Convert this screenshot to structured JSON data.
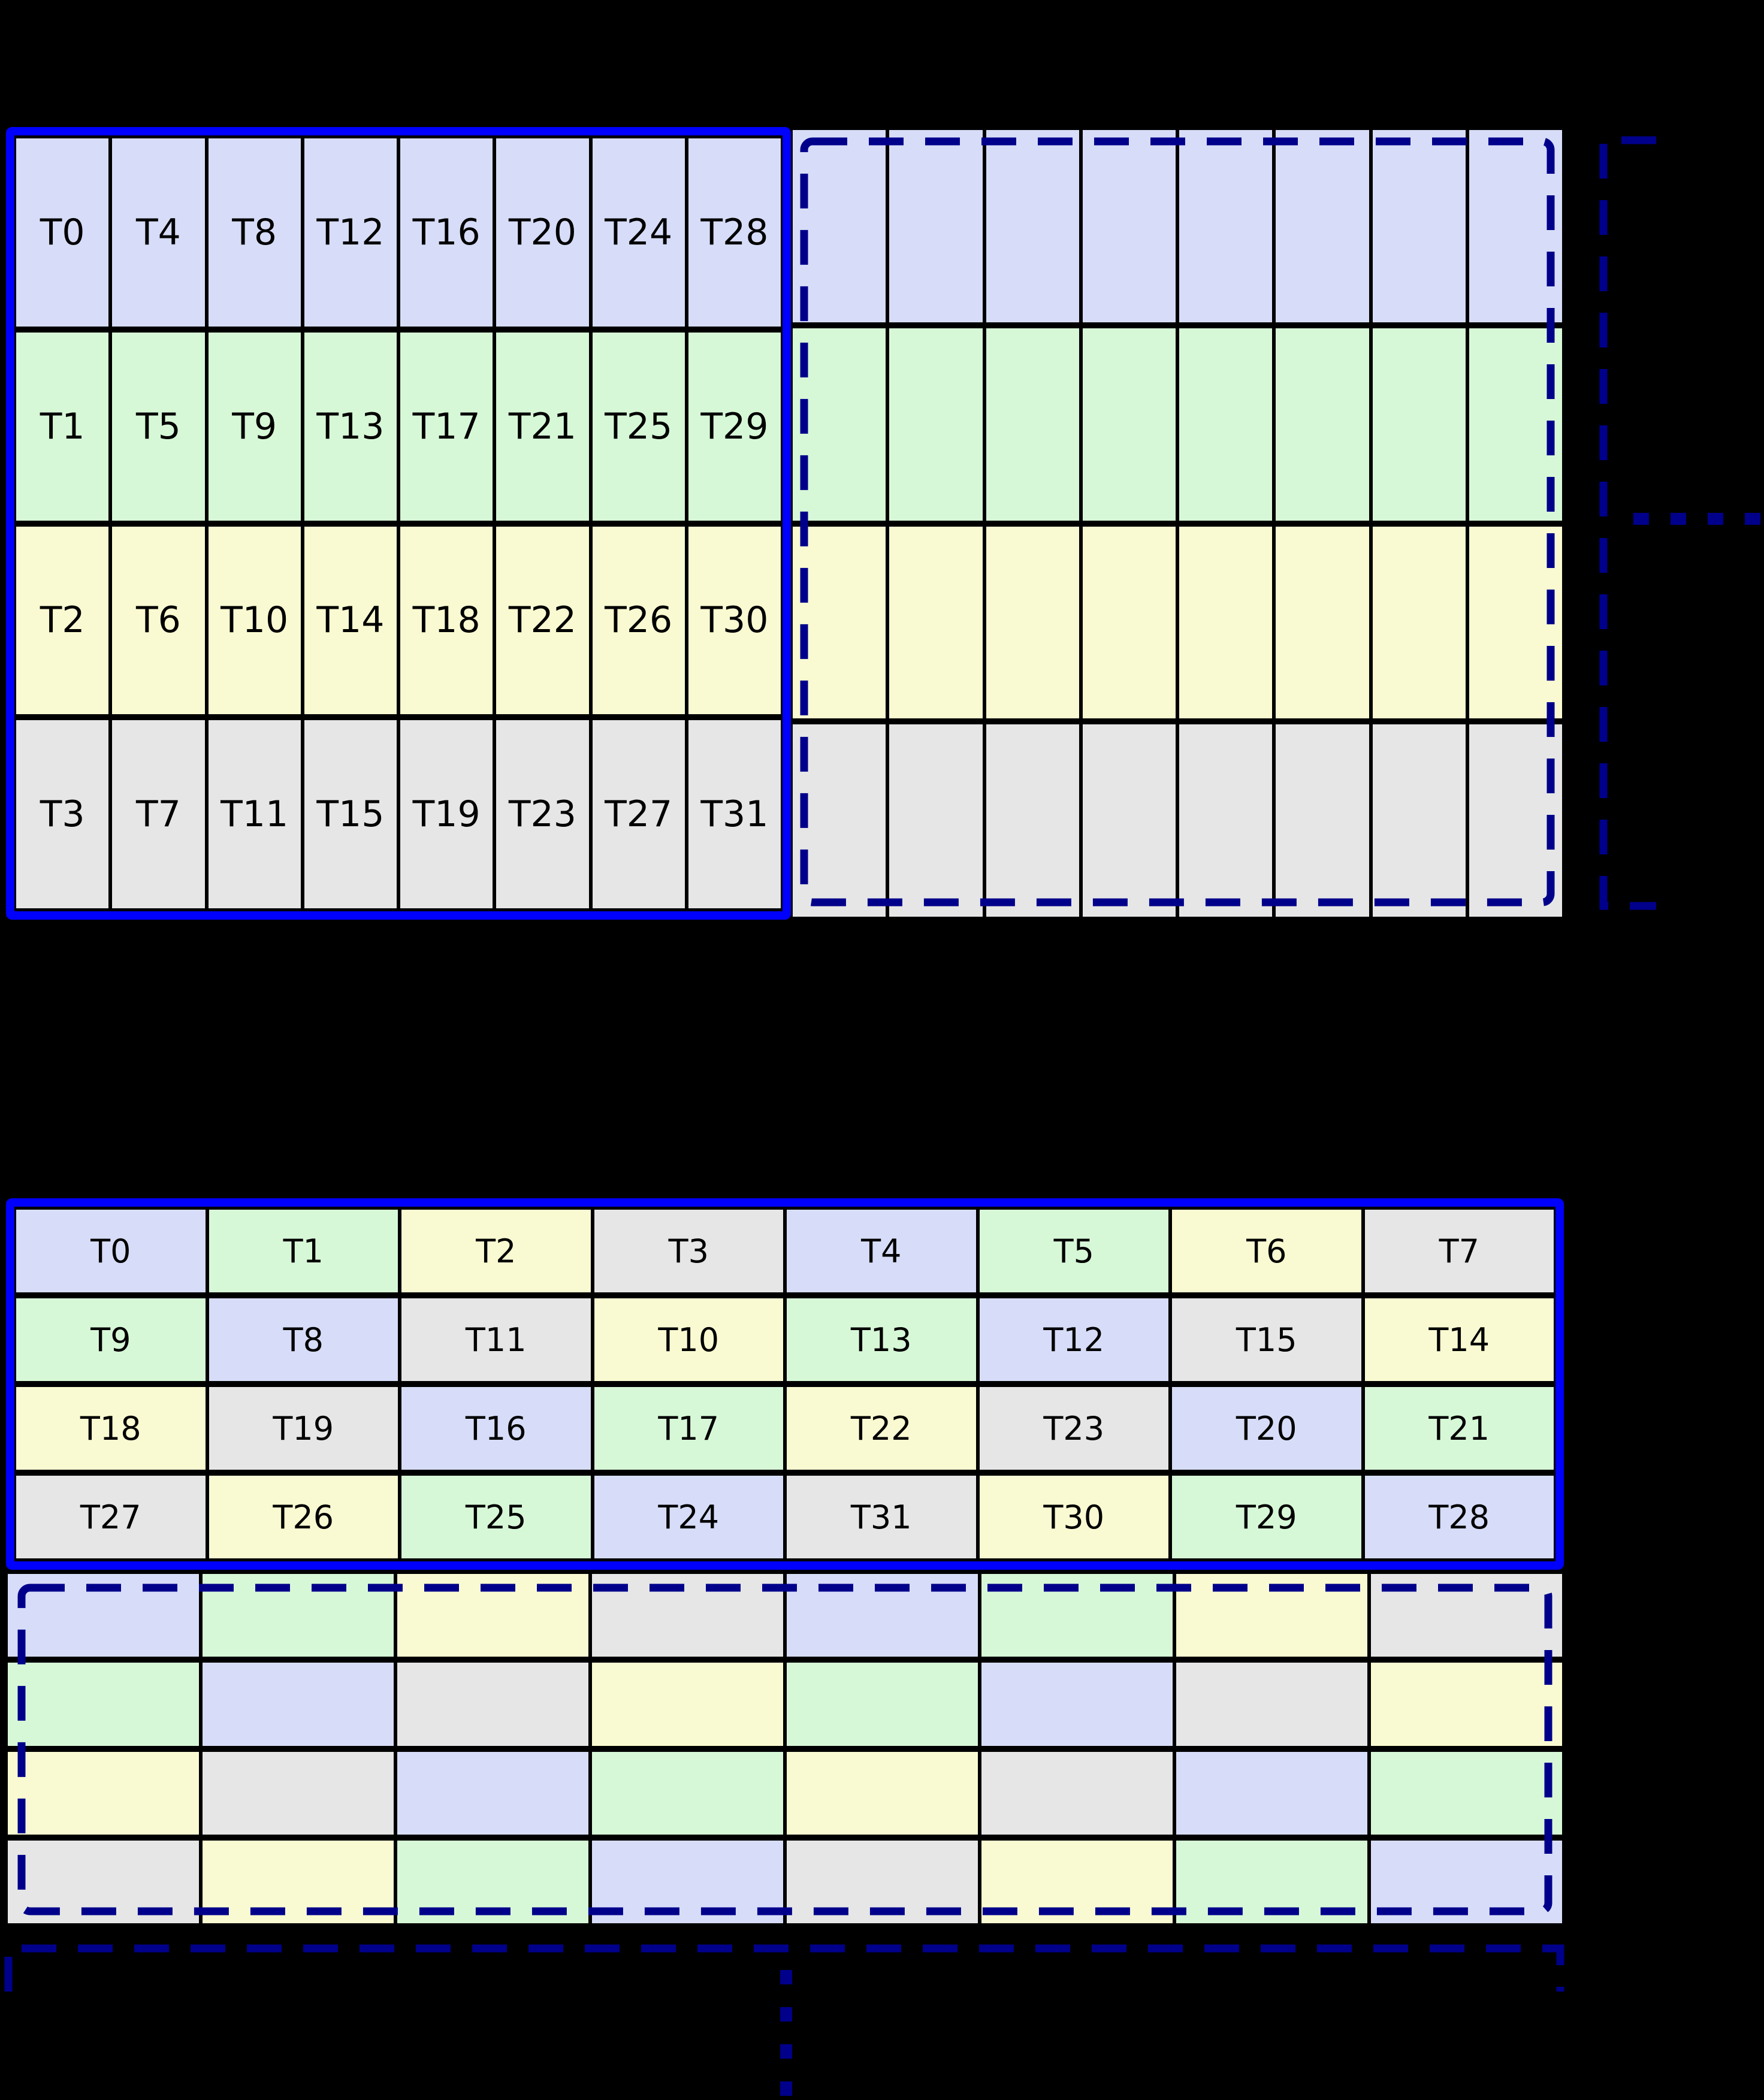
{
  "colors": {
    "background": "#000000",
    "solid_border": "#0000ff",
    "dashed_border": "#00008b",
    "cell_border": "#000000",
    "lavender": "#d7ddf8",
    "green": "#d7f8d7",
    "yellow": "#fafad2",
    "gray": "#e6e6e6"
  },
  "top_grid": {
    "labeled_block": {
      "rows": [
        {
          "cells": [
            {
              "t": "T0",
              "c": "lavender"
            },
            {
              "t": "T4",
              "c": "lavender"
            },
            {
              "t": "T8",
              "c": "lavender"
            },
            {
              "t": "T12",
              "c": "lavender"
            },
            {
              "t": "T16",
              "c": "lavender"
            },
            {
              "t": "T20",
              "c": "lavender"
            },
            {
              "t": "T24",
              "c": "lavender"
            },
            {
              "t": "T28",
              "c": "lavender"
            }
          ]
        },
        {
          "cells": [
            {
              "t": "T1",
              "c": "green"
            },
            {
              "t": "T5",
              "c": "green"
            },
            {
              "t": "T9",
              "c": "green"
            },
            {
              "t": "T13",
              "c": "green"
            },
            {
              "t": "T17",
              "c": "green"
            },
            {
              "t": "T21",
              "c": "green"
            },
            {
              "t": "T25",
              "c": "green"
            },
            {
              "t": "T29",
              "c": "green"
            }
          ]
        },
        {
          "cells": [
            {
              "t": "T2",
              "c": "yellow"
            },
            {
              "t": "T6",
              "c": "yellow"
            },
            {
              "t": "T10",
              "c": "yellow"
            },
            {
              "t": "T14",
              "c": "yellow"
            },
            {
              "t": "T18",
              "c": "yellow"
            },
            {
              "t": "T22",
              "c": "yellow"
            },
            {
              "t": "T26",
              "c": "yellow"
            },
            {
              "t": "T30",
              "c": "yellow"
            }
          ]
        },
        {
          "cells": [
            {
              "t": "T3",
              "c": "gray"
            },
            {
              "t": "T7",
              "c": "gray"
            },
            {
              "t": "T11",
              "c": "gray"
            },
            {
              "t": "T15",
              "c": "gray"
            },
            {
              "t": "T19",
              "c": "gray"
            },
            {
              "t": "T23",
              "c": "gray"
            },
            {
              "t": "T27",
              "c": "gray"
            },
            {
              "t": "T31",
              "c": "gray"
            }
          ]
        }
      ]
    },
    "empty_block": {
      "rows": [
        {
          "cells": [
            {
              "t": "",
              "c": "lavender"
            },
            {
              "t": "",
              "c": "lavender"
            },
            {
              "t": "",
              "c": "lavender"
            },
            {
              "t": "",
              "c": "lavender"
            },
            {
              "t": "",
              "c": "lavender"
            },
            {
              "t": "",
              "c": "lavender"
            },
            {
              "t": "",
              "c": "lavender"
            },
            {
              "t": "",
              "c": "lavender"
            }
          ]
        },
        {
          "cells": [
            {
              "t": "",
              "c": "green"
            },
            {
              "t": "",
              "c": "green"
            },
            {
              "t": "",
              "c": "green"
            },
            {
              "t": "",
              "c": "green"
            },
            {
              "t": "",
              "c": "green"
            },
            {
              "t": "",
              "c": "green"
            },
            {
              "t": "",
              "c": "green"
            },
            {
              "t": "",
              "c": "green"
            }
          ]
        },
        {
          "cells": [
            {
              "t": "",
              "c": "yellow"
            },
            {
              "t": "",
              "c": "yellow"
            },
            {
              "t": "",
              "c": "yellow"
            },
            {
              "t": "",
              "c": "yellow"
            },
            {
              "t": "",
              "c": "yellow"
            },
            {
              "t": "",
              "c": "yellow"
            },
            {
              "t": "",
              "c": "yellow"
            },
            {
              "t": "",
              "c": "yellow"
            }
          ]
        },
        {
          "cells": [
            {
              "t": "",
              "c": "gray"
            },
            {
              "t": "",
              "c": "gray"
            },
            {
              "t": "",
              "c": "gray"
            },
            {
              "t": "",
              "c": "gray"
            },
            {
              "t": "",
              "c": "gray"
            },
            {
              "t": "",
              "c": "gray"
            },
            {
              "t": "",
              "c": "gray"
            },
            {
              "t": "",
              "c": "gray"
            }
          ]
        }
      ]
    }
  },
  "bottom_grid": {
    "labeled_block": {
      "rows": [
        {
          "cells": [
            {
              "t": "T0",
              "c": "lavender"
            },
            {
              "t": "T1",
              "c": "green"
            },
            {
              "t": "T2",
              "c": "yellow"
            },
            {
              "t": "T3",
              "c": "gray"
            },
            {
              "t": "T4",
              "c": "lavender"
            },
            {
              "t": "T5",
              "c": "green"
            },
            {
              "t": "T6",
              "c": "yellow"
            },
            {
              "t": "T7",
              "c": "gray"
            }
          ]
        },
        {
          "cells": [
            {
              "t": "T9",
              "c": "green"
            },
            {
              "t": "T8",
              "c": "lavender"
            },
            {
              "t": "T11",
              "c": "gray"
            },
            {
              "t": "T10",
              "c": "yellow"
            },
            {
              "t": "T13",
              "c": "green"
            },
            {
              "t": "T12",
              "c": "lavender"
            },
            {
              "t": "T15",
              "c": "gray"
            },
            {
              "t": "T14",
              "c": "yellow"
            }
          ]
        },
        {
          "cells": [
            {
              "t": "T18",
              "c": "yellow"
            },
            {
              "t": "T19",
              "c": "gray"
            },
            {
              "t": "T16",
              "c": "lavender"
            },
            {
              "t": "T17",
              "c": "green"
            },
            {
              "t": "T22",
              "c": "yellow"
            },
            {
              "t": "T23",
              "c": "gray"
            },
            {
              "t": "T20",
              "c": "lavender"
            },
            {
              "t": "T21",
              "c": "green"
            }
          ]
        },
        {
          "cells": [
            {
              "t": "T27",
              "c": "gray"
            },
            {
              "t": "T26",
              "c": "yellow"
            },
            {
              "t": "T25",
              "c": "green"
            },
            {
              "t": "T24",
              "c": "lavender"
            },
            {
              "t": "T31",
              "c": "gray"
            },
            {
              "t": "T30",
              "c": "yellow"
            },
            {
              "t": "T29",
              "c": "green"
            },
            {
              "t": "T28",
              "c": "lavender"
            }
          ]
        }
      ]
    },
    "empty_block": {
      "rows": [
        {
          "cells": [
            {
              "t": "",
              "c": "lavender"
            },
            {
              "t": "",
              "c": "green"
            },
            {
              "t": "",
              "c": "yellow"
            },
            {
              "t": "",
              "c": "gray"
            },
            {
              "t": "",
              "c": "lavender"
            },
            {
              "t": "",
              "c": "green"
            },
            {
              "t": "",
              "c": "yellow"
            },
            {
              "t": "",
              "c": "gray"
            }
          ]
        },
        {
          "cells": [
            {
              "t": "",
              "c": "green"
            },
            {
              "t": "",
              "c": "lavender"
            },
            {
              "t": "",
              "c": "gray"
            },
            {
              "t": "",
              "c": "yellow"
            },
            {
              "t": "",
              "c": "green"
            },
            {
              "t": "",
              "c": "lavender"
            },
            {
              "t": "",
              "c": "gray"
            },
            {
              "t": "",
              "c": "yellow"
            }
          ]
        },
        {
          "cells": [
            {
              "t": "",
              "c": "yellow"
            },
            {
              "t": "",
              "c": "gray"
            },
            {
              "t": "",
              "c": "lavender"
            },
            {
              "t": "",
              "c": "green"
            },
            {
              "t": "",
              "c": "yellow"
            },
            {
              "t": "",
              "c": "gray"
            },
            {
              "t": "",
              "c": "lavender"
            },
            {
              "t": "",
              "c": "green"
            }
          ]
        },
        {
          "cells": [
            {
              "t": "",
              "c": "gray"
            },
            {
              "t": "",
              "c": "yellow"
            },
            {
              "t": "",
              "c": "green"
            },
            {
              "t": "",
              "c": "lavender"
            },
            {
              "t": "",
              "c": "gray"
            },
            {
              "t": "",
              "c": "yellow"
            },
            {
              "t": "",
              "c": "green"
            },
            {
              "t": "",
              "c": "lavender"
            }
          ]
        }
      ]
    }
  }
}
